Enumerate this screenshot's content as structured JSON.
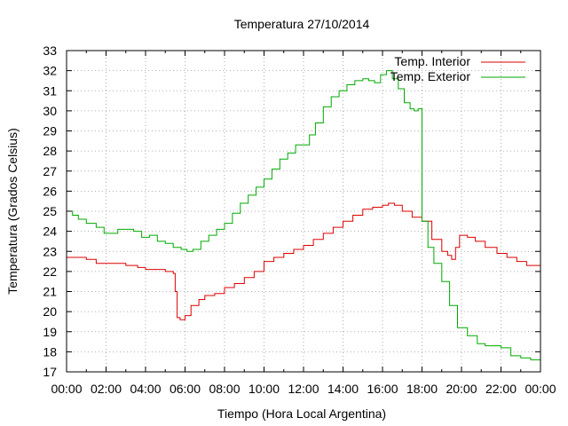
{
  "chart_data": {
    "type": "line",
    "title": "Temperatura 27/10/2014",
    "xlabel": "Tiempo (Hora Local Argentina)",
    "ylabel": "Temperatura (Grados Celsius)",
    "xlim": [
      0,
      24
    ],
    "ylim": [
      17,
      33
    ],
    "x_ticks": [
      "00:00",
      "02:00",
      "04:00",
      "06:00",
      "08:00",
      "10:00",
      "12:00",
      "14:00",
      "16:00",
      "18:00",
      "20:00",
      "22:00",
      "00:00"
    ],
    "y_ticks": [
      "17",
      "18",
      "19",
      "20",
      "21",
      "22",
      "23",
      "24",
      "25",
      "26",
      "27",
      "28",
      "29",
      "30",
      "31",
      "32",
      "33"
    ],
    "grid": true,
    "legend_position": "top-right",
    "series": [
      {
        "name": "Temp. Interior",
        "color": "#dd0000",
        "x": [
          0,
          0.5,
          1,
          1.5,
          2,
          3,
          3.6,
          4,
          5,
          5.4,
          5.5,
          5.6,
          5.75,
          6,
          6.3,
          6.7,
          7,
          7.5,
          8,
          8.5,
          9,
          9.5,
          10,
          10.5,
          11,
          11.5,
          12,
          12.5,
          13,
          13.5,
          14,
          14.5,
          15,
          15.5,
          16,
          16.3,
          16.6,
          17,
          17.5,
          18,
          18.5,
          19,
          19.3,
          19.5,
          19.7,
          19.9,
          20.3,
          20.7,
          21.2,
          21.8,
          22.3,
          22.8,
          23.3,
          24
        ],
        "y": [
          22.7,
          22.7,
          22.6,
          22.4,
          22.4,
          22.3,
          22.2,
          22.1,
          22.0,
          21.9,
          21.0,
          19.7,
          19.6,
          19.8,
          20.3,
          20.6,
          20.8,
          20.9,
          21.2,
          21.4,
          21.7,
          22.0,
          22.5,
          22.7,
          22.9,
          23.1,
          23.3,
          23.6,
          23.9,
          24.2,
          24.5,
          24.8,
          25.1,
          25.2,
          25.3,
          25.4,
          25.3,
          25.0,
          24.7,
          24.5,
          23.6,
          23.0,
          22.8,
          22.6,
          23.2,
          23.8,
          23.7,
          23.5,
          23.2,
          22.9,
          22.7,
          22.5,
          22.3,
          22.0
        ]
      },
      {
        "name": "Temp. Exterior",
        "color": "#00aa00",
        "x": [
          0,
          0.3,
          0.6,
          1,
          1.5,
          1.9,
          2.3,
          2.6,
          3,
          3.4,
          3.8,
          4.2,
          4.6,
          5,
          5.4,
          5.8,
          6.1,
          6.4,
          6.8,
          7.2,
          7.6,
          8,
          8.4,
          8.8,
          9.2,
          9.6,
          10,
          10.4,
          10.8,
          11.2,
          11.6,
          12,
          12.3,
          12.6,
          13,
          13.4,
          13.8,
          14.2,
          14.6,
          15,
          15.3,
          15.6,
          15.9,
          16.2,
          16.5,
          16.8,
          17.1,
          17.4,
          17.6,
          17.8,
          18,
          18.3,
          18.6,
          19,
          19.4,
          19.8,
          20.3,
          20.8,
          21.2,
          21.6,
          22,
          22.5,
          23,
          23.5,
          24
        ],
        "y": [
          25.0,
          24.8,
          24.6,
          24.4,
          24.2,
          23.9,
          23.9,
          24.1,
          24.1,
          24.0,
          23.7,
          23.8,
          23.5,
          23.4,
          23.2,
          23.1,
          23.0,
          23.1,
          23.5,
          23.8,
          24.1,
          24.4,
          24.9,
          25.4,
          25.8,
          26.2,
          26.6,
          27.1,
          27.6,
          27.9,
          28.3,
          28.3,
          28.8,
          29.4,
          30.2,
          30.7,
          31.0,
          31.3,
          31.5,
          31.6,
          31.5,
          31.4,
          31.8,
          32.0,
          31.6,
          31.1,
          30.4,
          30.1,
          30.0,
          30.1,
          24.5,
          23.2,
          22.4,
          21.5,
          20.3,
          19.2,
          18.8,
          18.4,
          18.3,
          18.3,
          18.2,
          17.8,
          17.7,
          17.6,
          17.4
        ]
      }
    ]
  }
}
